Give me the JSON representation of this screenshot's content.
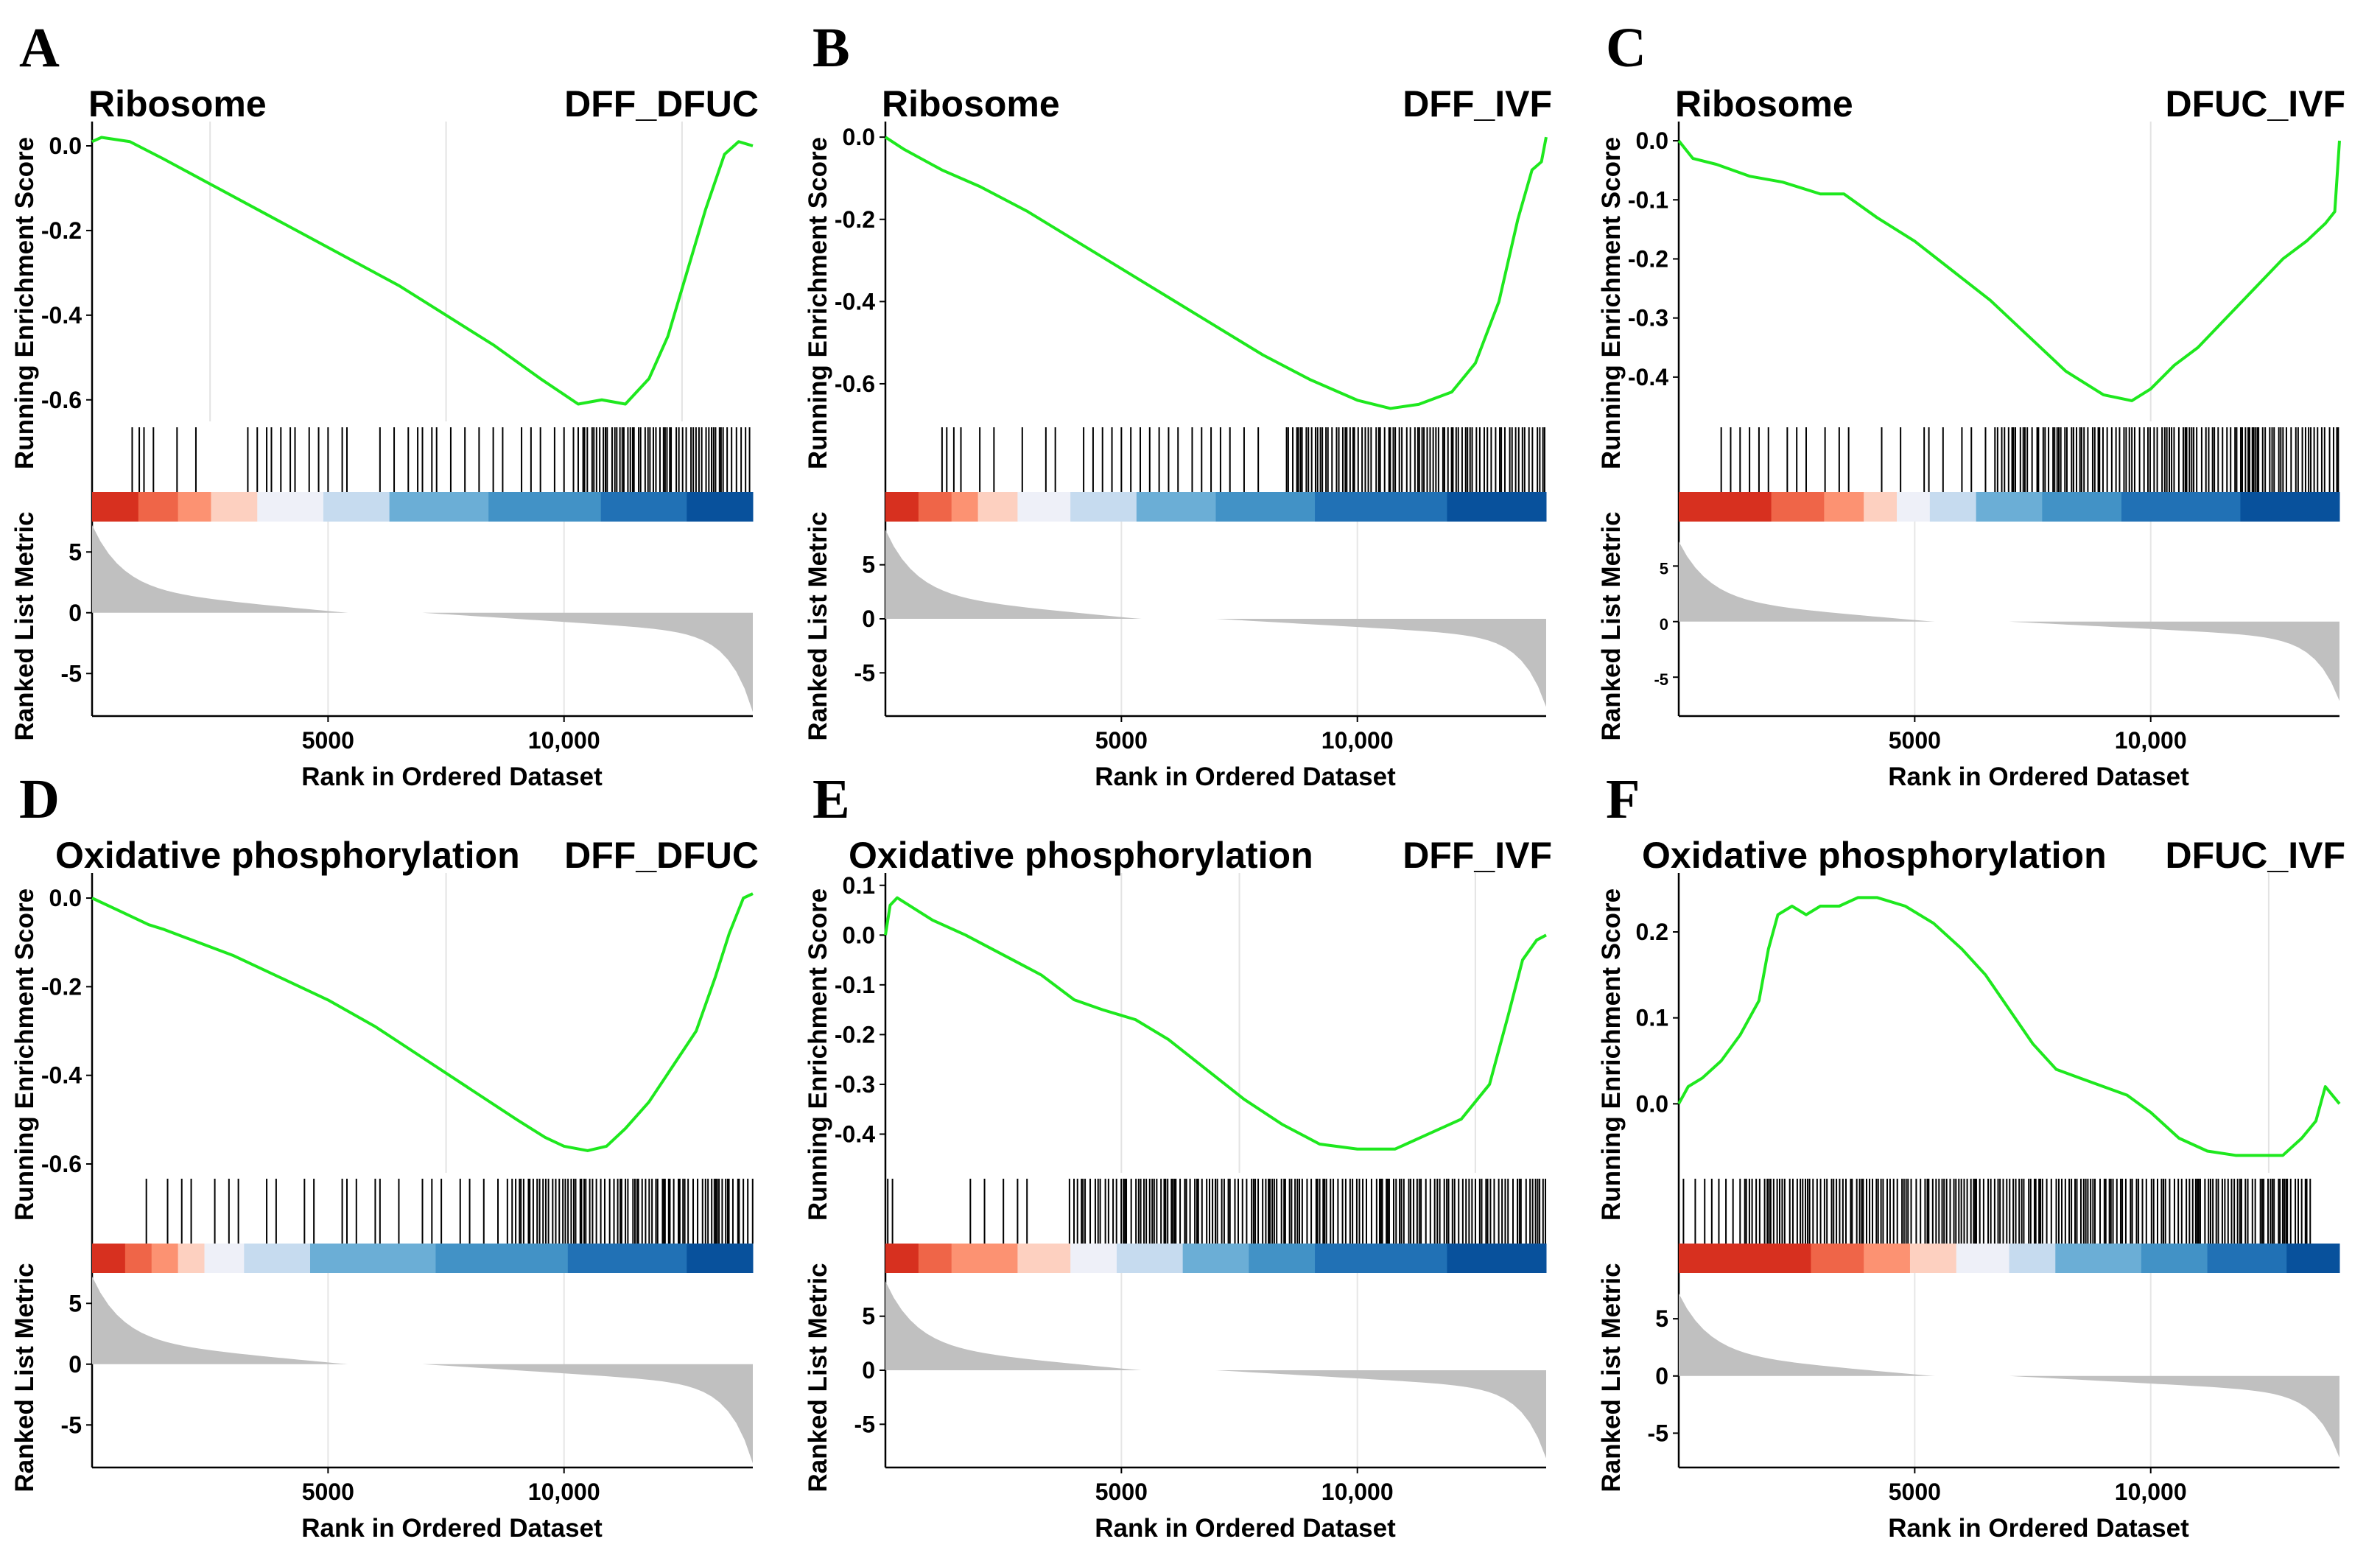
{
  "figure": {
    "x_label": "Rank in Ordered Dataset"
  },
  "chart_data": [
    {
      "panel": "A",
      "type": "line",
      "title_set": "Ribosome",
      "title_comp": "DFF_DFUC",
      "ylabel_top": "Running Enrichment Score",
      "ylabel_bottom": "Ranked List Metric",
      "xlabel": "Rank in Ordered Dataset",
      "xlim": [
        0,
        14000
      ],
      "x_ticks": [
        5000,
        10000
      ],
      "x_tick_labels": [
        "5000",
        "10,000"
      ],
      "es_ylim": [
        -0.63,
        0.04
      ],
      "es_ticks": [
        0.0,
        -0.2,
        -0.4,
        -0.6
      ],
      "es_tick_labels": [
        "0.0",
        "-0.2",
        "-0.4",
        "-0.6"
      ],
      "es_gridlines_x": [
        2500,
        7500,
        12500
      ],
      "es_curve": {
        "x": [
          0,
          200,
          800,
          1500,
          2500,
          3500,
          4500,
          5500,
          6500,
          7500,
          8500,
          9500,
          10300,
          10800,
          11300,
          11800,
          12200,
          12600,
          13000,
          13400,
          13700,
          14000
        ],
        "y": [
          0.01,
          0.02,
          0.01,
          -0.03,
          -0.09,
          -0.15,
          -0.21,
          -0.27,
          -0.33,
          -0.4,
          -0.47,
          -0.55,
          -0.61,
          -0.6,
          -0.61,
          -0.55,
          -0.45,
          -0.3,
          -0.15,
          -0.02,
          0.01,
          0.0
        ]
      },
      "metric_ylim": [
        -8.5,
        7.5
      ],
      "metric_ticks": [
        5,
        0,
        -5
      ],
      "metric_tick_labels": [
        "5",
        "0",
        "-5"
      ],
      "metric_max": 7,
      "metric_min": -8,
      "gene_hits": [
        850,
        1000,
        1100,
        1300,
        1800,
        2200,
        3300,
        3500,
        3700,
        3800,
        4000,
        4200,
        4300,
        4600,
        4800,
        5000,
        5300,
        5400,
        6100,
        6400,
        6700,
        6900,
        7000,
        7200,
        7300,
        7600,
        7900,
        8200,
        8500,
        8700,
        9100,
        9300,
        9500,
        9800,
        10000
      ],
      "gene_hits_dense": [
        10200,
        14000
      ],
      "color_stops": [
        0.07,
        0.13,
        0.18,
        0.25,
        0.35,
        0.45,
        0.6,
        0.77,
        0.9,
        1.0
      ]
    },
    {
      "panel": "B",
      "type": "line",
      "title_set": "Ribosome",
      "title_comp": "DFF_IVF",
      "ylabel_top": "Running Enrichment Score",
      "ylabel_bottom": "Ranked List Metric",
      "xlabel": "Rank in Ordered Dataset",
      "xlim": [
        0,
        14000
      ],
      "x_ticks": [
        5000,
        10000
      ],
      "x_tick_labels": [
        "5000",
        "10,000"
      ],
      "es_ylim": [
        -0.67,
        0.02
      ],
      "es_ticks": [
        0.0,
        -0.2,
        -0.4,
        -0.6
      ],
      "es_tick_labels": [
        "0.0",
        "-0.2",
        "-0.4",
        "-0.6"
      ],
      "es_gridlines_x": [],
      "es_curve": {
        "x": [
          0,
          400,
          1200,
          2000,
          3000,
          4000,
          5000,
          6000,
          7000,
          8000,
          9000,
          10000,
          10700,
          11300,
          12000,
          12500,
          13000,
          13400,
          13700,
          13900,
          14000
        ],
        "y": [
          0.0,
          -0.03,
          -0.08,
          -0.12,
          -0.18,
          -0.25,
          -0.32,
          -0.39,
          -0.46,
          -0.53,
          -0.59,
          -0.64,
          -0.66,
          -0.65,
          -0.62,
          -0.55,
          -0.4,
          -0.2,
          -0.08,
          -0.06,
          0.0
        ]
      },
      "metric_ylim": [
        -9,
        9
      ],
      "metric_ticks": [
        5,
        0,
        -5
      ],
      "metric_tick_labels": [
        "5",
        "0",
        "-5"
      ],
      "metric_max": 8,
      "metric_min": -8,
      "gene_hits": [
        1200,
        1300,
        1450,
        1600,
        2000,
        2300,
        2900,
        3400,
        3600,
        4200,
        4400,
        4600,
        4800,
        5000,
        5200,
        5400,
        5600,
        5800,
        6000,
        6200,
        6500,
        6700,
        6900,
        7100,
        7300,
        7600,
        7900
      ],
      "gene_hits_dense": [
        8500,
        14000
      ],
      "color_stops": [
        0.05,
        0.1,
        0.14,
        0.2,
        0.28,
        0.38,
        0.5,
        0.65,
        0.85,
        1.0
      ]
    },
    {
      "panel": "C",
      "type": "line",
      "title_set": "Ribosome",
      "title_comp": "DFUC_IVF",
      "ylabel_top": "Running Enrichment Score",
      "ylabel_bottom": "Ranked List Metric",
      "xlabel": "Rank in Ordered Dataset",
      "xlim": [
        0,
        14000
      ],
      "x_ticks": [
        5000,
        10000
      ],
      "x_tick_labels": [
        "5000",
        "10,000"
      ],
      "es_ylim": [
        -0.46,
        0.02
      ],
      "es_ticks": [
        0.0,
        -0.1,
        -0.2,
        -0.3,
        -0.4
      ],
      "es_tick_labels": [
        "0.0",
        "-0.1",
        "-0.2",
        "-0.3",
        "-0.4"
      ],
      "es_gridlines_x": [
        10000
      ],
      "es_curve": {
        "x": [
          0,
          300,
          800,
          1500,
          2200,
          3000,
          3500,
          4200,
          5000,
          5800,
          6600,
          7400,
          8200,
          9000,
          9600,
          10000,
          10500,
          11000,
          11600,
          12200,
          12800,
          13300,
          13700,
          13900,
          14000
        ],
        "y": [
          0.0,
          -0.03,
          -0.04,
          -0.06,
          -0.07,
          -0.09,
          -0.09,
          -0.13,
          -0.17,
          -0.22,
          -0.27,
          -0.33,
          -0.39,
          -0.43,
          -0.44,
          -0.42,
          -0.38,
          -0.35,
          -0.3,
          -0.25,
          -0.2,
          -0.17,
          -0.14,
          -0.12,
          0.0
        ]
      },
      "metric_ylim": [
        -8.5,
        9
      ],
      "metric_ticks": [
        5,
        0,
        -5
      ],
      "metric_tick_labels": [
        "5",
        "0",
        "-5"
      ],
      "metric_max": 7,
      "metric_min": -7,
      "gene_hits": [
        900,
        1100,
        1300,
        1500,
        1700,
        1900,
        2300,
        2500,
        2700,
        3100,
        3400,
        3600,
        4300,
        4700,
        5200,
        5300,
        5600,
        6000,
        6200,
        6500
      ],
      "gene_hits_dense": [
        6700,
        14000
      ],
      "color_stops": [
        0.14,
        0.22,
        0.28,
        0.33,
        0.38,
        0.45,
        0.55,
        0.67,
        0.85,
        1.0
      ]
    },
    {
      "panel": "D",
      "type": "line",
      "title_set": "Oxidative phosphorylation",
      "title_comp": "DFF_DFUC",
      "ylabel_top": "Running Enrichment Score",
      "ylabel_bottom": "Ranked List Metric",
      "xlabel": "Rank in Ordered Dataset",
      "xlim": [
        0,
        14000
      ],
      "x_ticks": [
        5000,
        10000
      ],
      "x_tick_labels": [
        "5000",
        "10,000"
      ],
      "es_ylim": [
        -0.6,
        0.04
      ],
      "es_ticks": [
        0.0,
        -0.2,
        -0.4,
        -0.6
      ],
      "es_tick_labels": [
        "0.0",
        "-0.2",
        "-0.4",
        "-0.6"
      ],
      "es_gridlines_x": [
        7500
      ],
      "es_curve": {
        "x": [
          0,
          600,
          1200,
          1500,
          2000,
          3000,
          4000,
          5000,
          6000,
          7000,
          8000,
          9000,
          9600,
          10000,
          10500,
          10900,
          11300,
          11800,
          12300,
          12800,
          13200,
          13500,
          13800,
          14000
        ],
        "y": [
          0.0,
          -0.03,
          -0.06,
          -0.07,
          -0.09,
          -0.13,
          -0.18,
          -0.23,
          -0.29,
          -0.36,
          -0.43,
          -0.5,
          -0.54,
          -0.56,
          -0.57,
          -0.56,
          -0.52,
          -0.46,
          -0.38,
          -0.3,
          -0.18,
          -0.08,
          0.0,
          0.01
        ]
      },
      "metric_ylim": [
        -8.5,
        7.5
      ],
      "metric_ticks": [
        5,
        0,
        -5
      ],
      "metric_tick_labels": [
        "5",
        "0",
        "-5"
      ],
      "metric_max": 7,
      "metric_min": -8,
      "gene_hits": [
        1150,
        1600,
        1900,
        2100,
        2600,
        2900,
        3100,
        3700,
        3900,
        4500,
        4700,
        5300,
        5400,
        5600,
        6000,
        6100,
        6500,
        7000,
        7200,
        7400,
        7800,
        8000,
        8300,
        8600,
        8800
      ],
      "gene_hits_dense": [
        8900,
        14000
      ],
      "color_stops": [
        0.05,
        0.09,
        0.13,
        0.17,
        0.23,
        0.33,
        0.52,
        0.72,
        0.9,
        1.0
      ]
    },
    {
      "panel": "E",
      "type": "line",
      "title_set": "Oxidative phosphorylation",
      "title_comp": "DFF_IVF",
      "ylabel_top": "Running Enrichment Score",
      "ylabel_bottom": "Ranked List Metric",
      "xlabel": "Rank in Ordered Dataset",
      "xlim": [
        0,
        14000
      ],
      "x_ticks": [
        5000,
        10000
      ],
      "x_tick_labels": [
        "5000",
        "10,000"
      ],
      "es_ylim": [
        -0.46,
        0.11
      ],
      "es_ticks": [
        0.1,
        0.0,
        -0.1,
        -0.2,
        -0.3,
        -0.4
      ],
      "es_tick_labels": [
        "0.1",
        "0.0",
        "-0.1",
        "-0.2",
        "-0.3",
        "-0.4"
      ],
      "es_gridlines_x": [
        5000,
        7500,
        12500
      ],
      "es_curve": {
        "x": [
          0,
          100,
          250,
          500,
          1000,
          1700,
          2500,
          3300,
          4000,
          4600,
          5300,
          6000,
          6800,
          7600,
          8400,
          9200,
          10000,
          10800,
          11500,
          12200,
          12800,
          13200,
          13500,
          13800,
          14000
        ],
        "y": [
          0.0,
          0.06,
          0.075,
          0.06,
          0.03,
          0.0,
          -0.04,
          -0.08,
          -0.13,
          -0.15,
          -0.17,
          -0.21,
          -0.27,
          -0.33,
          -0.38,
          -0.42,
          -0.43,
          -0.43,
          -0.4,
          -0.37,
          -0.3,
          -0.16,
          -0.05,
          -0.01,
          0.0
        ]
      },
      "metric_ylim": [
        -9,
        9
      ],
      "metric_ticks": [
        5,
        0,
        -5
      ],
      "metric_tick_labels": [
        "5",
        "0",
        "-5"
      ],
      "metric_max": 8,
      "metric_min": -8,
      "gene_hits": [
        50,
        150,
        1800,
        2100,
        2500,
        2800,
        3000
      ],
      "gene_hits_dense": [
        3900,
        14000
      ],
      "color_stops": [
        0.05,
        0.1,
        0.2,
        0.28,
        0.35,
        0.45,
        0.55,
        0.65,
        0.85,
        1.0
      ]
    },
    {
      "panel": "F",
      "type": "line",
      "title_set": "Oxidative phosphorylation",
      "title_comp": "DFUC_IVF",
      "ylabel_top": "Running Enrichment Score",
      "ylabel_bottom": "Ranked List Metric",
      "xlabel": "Rank in Ordered Dataset",
      "xlim": [
        0,
        14000
      ],
      "x_ticks": [
        5000,
        10000
      ],
      "x_tick_labels": [
        "5000",
        "10,000"
      ],
      "es_ylim": [
        -0.07,
        0.26
      ],
      "es_ticks": [
        0.2,
        0.1,
        0.0
      ],
      "es_tick_labels": [
        "0.2",
        "0.1",
        "0.0"
      ],
      "es_gridlines_x": [
        12500
      ],
      "es_curve": {
        "x": [
          0,
          200,
          500,
          900,
          1300,
          1700,
          1900,
          2100,
          2400,
          2700,
          3000,
          3400,
          3800,
          4200,
          4800,
          5400,
          6000,
          6500,
          7000,
          7500,
          8000,
          8500,
          9000,
          9500,
          10000,
          10600,
          11200,
          11800,
          12300,
          12800,
          13200,
          13500,
          13700,
          14000
        ],
        "y": [
          0.0,
          0.02,
          0.03,
          0.05,
          0.08,
          0.12,
          0.18,
          0.22,
          0.23,
          0.22,
          0.23,
          0.23,
          0.24,
          0.24,
          0.23,
          0.21,
          0.18,
          0.15,
          0.11,
          0.07,
          0.04,
          0.03,
          0.02,
          0.01,
          -0.01,
          -0.04,
          -0.055,
          -0.06,
          -0.06,
          -0.06,
          -0.04,
          -0.02,
          0.02,
          0.0
        ]
      },
      "metric_ylim": [
        -8,
        9
      ],
      "metric_ticks": [
        5,
        0,
        -5
      ],
      "metric_tick_labels": [
        "5",
        "0",
        "-5"
      ],
      "metric_max": 7,
      "metric_min": -7,
      "gene_hits": [
        100,
        350,
        550,
        700,
        850,
        1000,
        1150,
        1300
      ],
      "gene_hits_dense": [
        1400,
        13400
      ],
      "color_stops": [
        0.2,
        0.28,
        0.35,
        0.42,
        0.5,
        0.57,
        0.7,
        0.8,
        0.92,
        1.0
      ]
    }
  ]
}
